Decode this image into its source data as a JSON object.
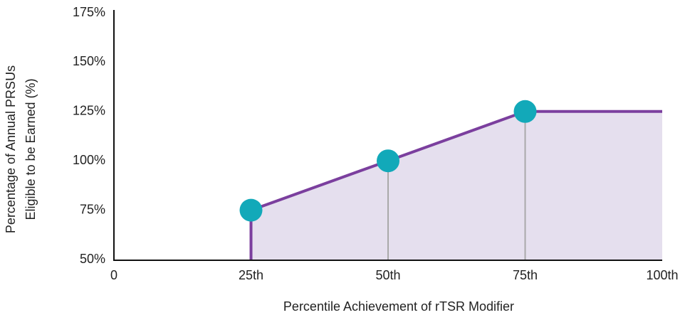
{
  "chart_data": {
    "type": "line",
    "x_label": "Percentile Achievement of rTSR Modifier",
    "y_label": [
      "Percentage of Annual PRSUs",
      "Eligible to be Earned (%)"
    ],
    "x": [
      25,
      25,
      50,
      75,
      100
    ],
    "values": [
      50,
      75,
      100,
      125,
      125
    ],
    "color": "#7b3f9e",
    "fill_color": "#e5dfee",
    "markers": {
      "x": [
        25,
        50,
        75
      ],
      "values": [
        75,
        100,
        125
      ],
      "color": "#12a9b9",
      "drop_line_color": "#a9a9a9"
    },
    "xlim": [
      0,
      100
    ],
    "xticks": [
      0,
      {
        "value": 25,
        "label": "25th"
      },
      {
        "value": 50,
        "label": "50th"
      },
      {
        "value": 75,
        "label": "75th"
      },
      {
        "value": 100,
        "label": "100th"
      }
    ],
    "ylim": [
      50,
      175
    ],
    "yticks": [
      {
        "value": 50,
        "label": "50%"
      },
      {
        "value": 75,
        "label": "75%"
      },
      {
        "value": 100,
        "label": "100%"
      },
      {
        "value": 125,
        "label": "125%"
      },
      {
        "value": 150,
        "label": "150%"
      },
      {
        "value": 175,
        "label": "175%"
      }
    ]
  }
}
